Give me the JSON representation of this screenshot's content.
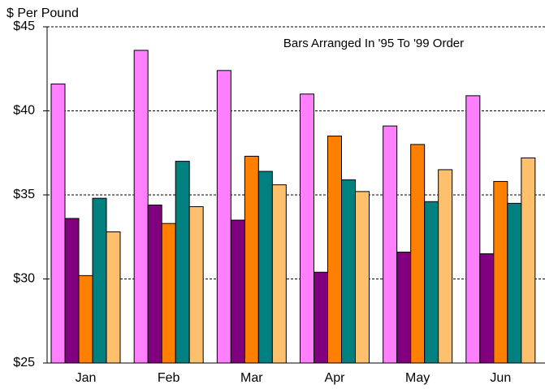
{
  "chart_data": {
    "type": "bar",
    "y_axis_label": "$ Per Pound",
    "annotation": "Bars Arranged In '95 To '99 Order",
    "categories": [
      "Jan",
      "Feb",
      "Mar",
      "Apr",
      "May",
      "Jun"
    ],
    "series": [
      {
        "color": "#ff80ff",
        "values": [
          41.6,
          43.6,
          42.4,
          41.0,
          39.1,
          40.9
        ]
      },
      {
        "color": "#800080",
        "values": [
          33.6,
          34.4,
          33.5,
          30.4,
          31.6,
          31.5
        ]
      },
      {
        "color": "#ff8000",
        "values": [
          30.2,
          33.3,
          37.3,
          38.5,
          38.0,
          35.8
        ]
      },
      {
        "color": "#008080",
        "values": [
          34.8,
          37.0,
          36.4,
          35.9,
          34.6,
          34.5
        ]
      },
      {
        "color": "#ffc06e",
        "values": [
          32.8,
          34.3,
          35.6,
          35.2,
          36.5,
          37.2
        ]
      }
    ],
    "ylim": [
      25,
      45
    ],
    "yticks": [
      {
        "value": 25,
        "label": "$25"
      },
      {
        "value": 30,
        "label": "$30"
      },
      {
        "value": 35,
        "label": "$35"
      },
      {
        "value": 40,
        "label": "$40"
      },
      {
        "value": 45,
        "label": "$45"
      }
    ],
    "grid": true
  }
}
